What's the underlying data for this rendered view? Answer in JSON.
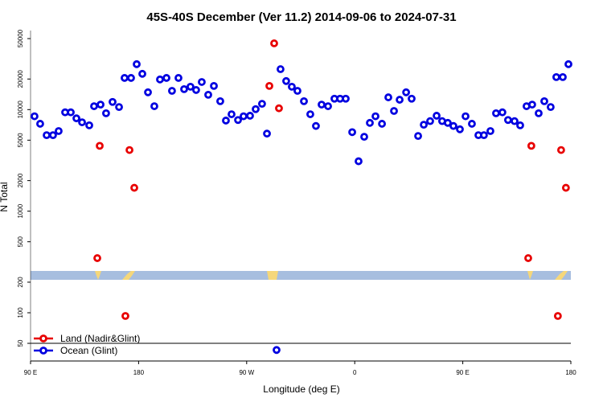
{
  "chart_data": {
    "type": "scatter",
    "title": "45S-40S December (Ver 11.2)   2014-09-06 to 2024-07-31",
    "x_label": "Longitude (deg E)",
    "y_label": "N Total",
    "log_y": true,
    "legend": "bottom-left",
    "xlim": [
      90,
      540
    ],
    "xticks": [
      {
        "value": 90,
        "label": "90 E"
      },
      180,
      {
        "value": 270,
        "label": "90 W"
      },
      {
        "value": 360,
        "label": "0"
      },
      {
        "value": 450,
        "label": "90 E"
      },
      {
        "value": 540,
        "label": "180"
      }
    ],
    "ylim": [
      33.5,
      60000
    ],
    "yticks": [
      50,
      100,
      200,
      500,
      1000,
      2000,
      5000,
      10000,
      20000,
      50000
    ],
    "series": [
      {
        "name": "Land (Nadir&Glint)",
        "color": "#e80000",
        "x": [
          145.6,
          147.6,
          169.0,
          172.4,
          176.4,
          288.9,
          292.9,
          296.9,
          504.5,
          507.1,
          529.2,
          531.9,
          535.9
        ],
        "values": [
          345,
          4400,
          93,
          4000,
          1700,
          17100,
          44900,
          10300,
          345,
          4400,
          93,
          4000,
          1700
        ]
      },
      {
        "name": "Ocean (Glint)",
        "color": "#0000e0",
        "x": [
          93.3,
          98.0,
          103.4,
          108.7,
          113.4,
          118.8,
          123.5,
          128.2,
          132.9,
          138.9,
          142.9,
          148.3,
          152.9,
          158.3,
          163.7,
          168.3,
          173.7,
          178.4,
          183.1,
          187.8,
          193.1,
          197.8,
          203.2,
          207.8,
          213.2,
          217.9,
          223.2,
          227.9,
          232.6,
          238.0,
          242.7,
          248.0,
          252.7,
          257.4,
          262.8,
          267.4,
          272.8,
          277.5,
          282.8,
          286.9,
          294.9,
          298.2,
          302.9,
          307.6,
          312.3,
          317.7,
          323.0,
          327.7,
          332.4,
          337.8,
          343.1,
          347.8,
          352.5,
          357.9,
          363.2,
          367.9,
          372.6,
          377.3,
          382.7,
          388.0,
          392.7,
          397.4,
          402.8,
          407.4,
          412.8,
          417.5,
          422.8,
          428.2,
          432.8,
          437.5,
          442.2,
          447.6,
          452.3,
          457.6,
          463.0,
          467.6,
          473.0,
          477.7,
          483.0,
          487.7,
          493.1,
          497.8,
          503.1,
          507.8,
          513.2,
          517.9,
          523.2,
          527.9,
          533.3,
          538.0
        ],
        "values": [
          8600,
          7250,
          5600,
          5600,
          6150,
          9400,
          9400,
          8200,
          7500,
          7000,
          10800,
          11200,
          9200,
          11900,
          10600,
          20500,
          20500,
          28000,
          22500,
          14800,
          10800,
          19800,
          20500,
          15300,
          20500,
          15900,
          16800,
          15600,
          18700,
          14000,
          17100,
          12100,
          7800,
          9000,
          7900,
          8600,
          8700,
          10100,
          11400,
          5800,
          43,
          25000,
          19100,
          16800,
          15300,
          12100,
          9000,
          6900,
          11200,
          10800,
          12800,
          12800,
          12800,
          6000,
          3100,
          5400,
          7400,
          8600,
          7250,
          13200,
          9700,
          12500,
          14800,
          12800,
          5500,
          7100,
          7700,
          8700,
          7700,
          7400,
          6900,
          6400,
          8600,
          7250,
          5600,
          5600,
          6150,
          9200,
          9400,
          7900,
          7700,
          7000,
          10800,
          11200,
          9200,
          12100,
          10600,
          20900,
          20900,
          28000
        ]
      }
    ]
  }
}
